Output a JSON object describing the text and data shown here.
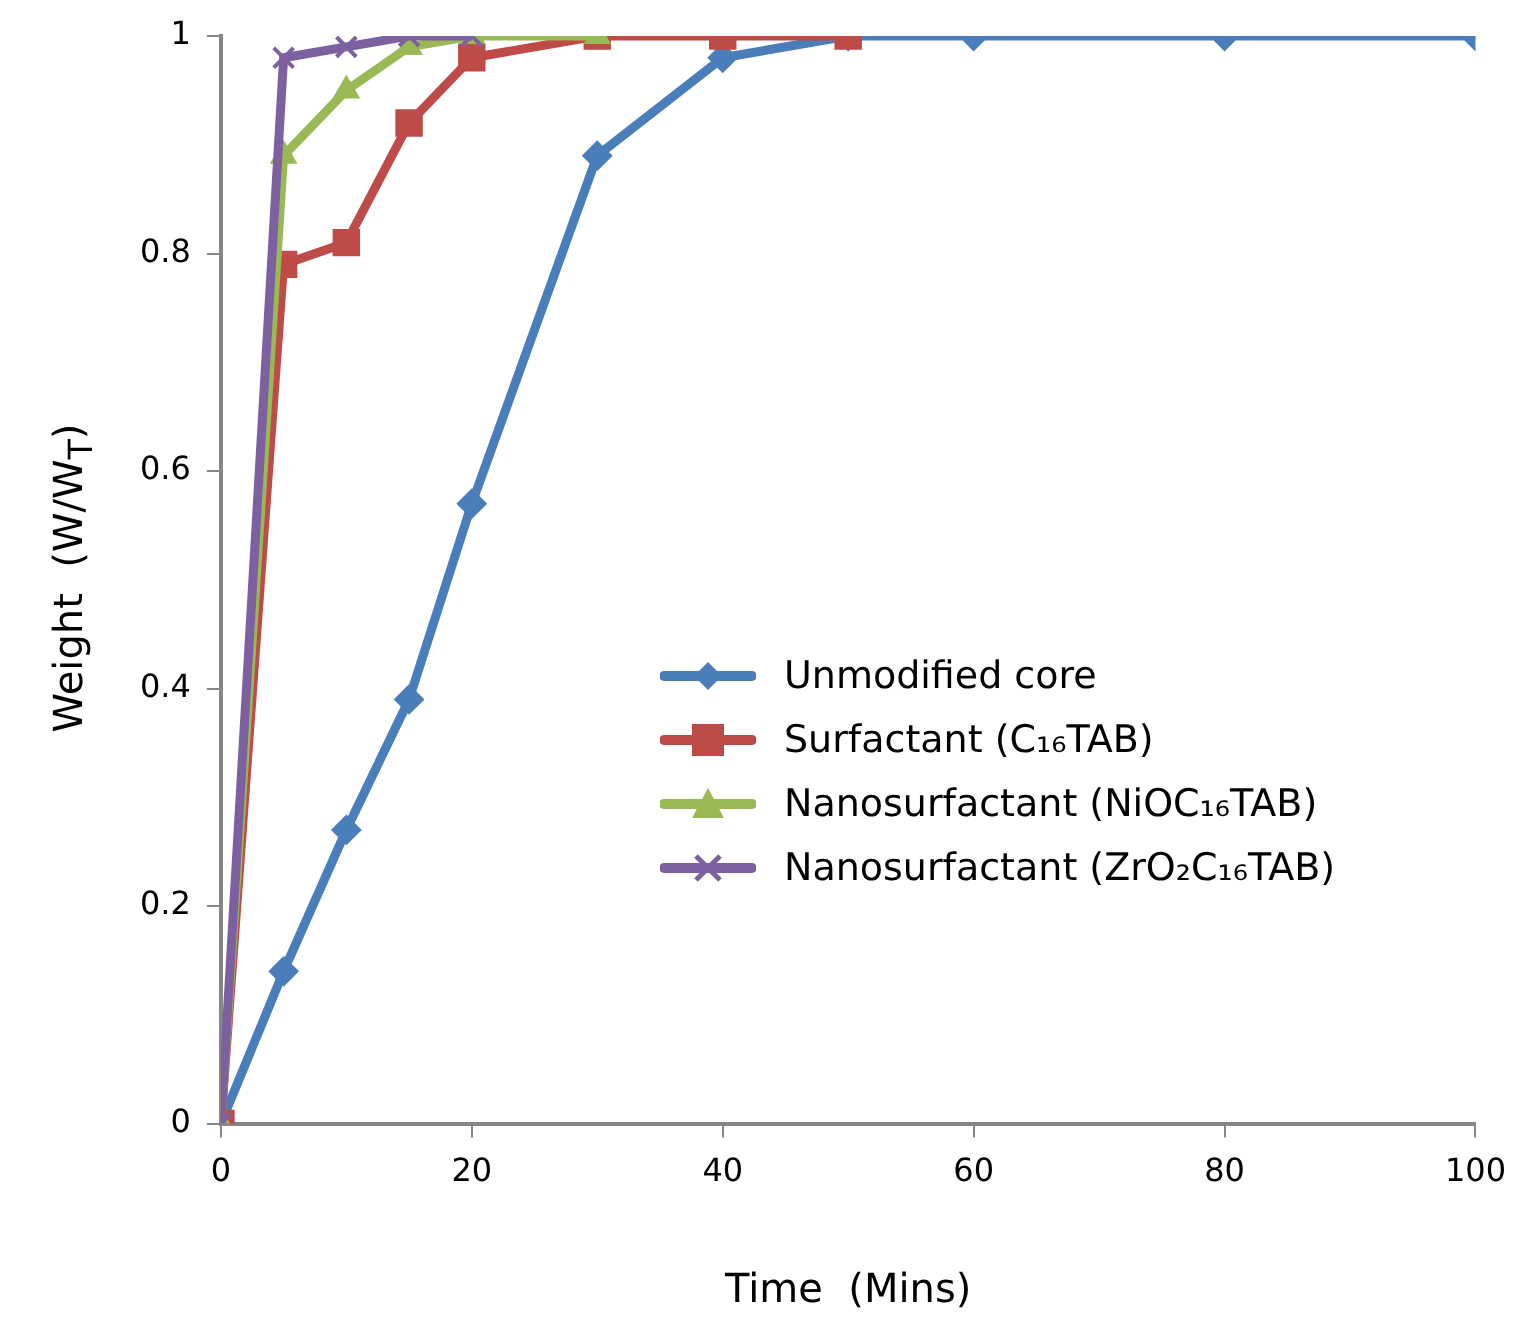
{
  "chart_data": {
    "type": "line",
    "xlabel": "Time  (Mins)",
    "ylabel": "Weight  (W/W$_{T}$)",
    "xlim": [
      0,
      100
    ],
    "xticks": [
      0,
      20,
      40,
      60,
      80,
      100
    ],
    "ylim": [
      0,
      1
    ],
    "yticks": [
      0,
      0.2,
      0.4,
      0.6,
      0.8,
      1
    ],
    "grid": false,
    "legend": "right",
    "line_style": "solid",
    "series": [
      {
        "name": "Unmodified core",
        "color": "#4a7ebb",
        "marker": "diamond",
        "x": [
          0,
          5,
          10,
          15,
          20,
          30,
          40,
          50,
          60,
          80,
          100
        ],
        "values": [
          0,
          0.14,
          0.27,
          0.39,
          0.57,
          0.89,
          0.98,
          1,
          1,
          1,
          1
        ]
      },
      {
        "name": "Surfactant (C₁₆TAB)",
        "color": "#be4b48",
        "marker": "square",
        "x": [
          0,
          5,
          10,
          15,
          20,
          30,
          40,
          50
        ],
        "values": [
          0,
          0.79,
          0.81,
          0.92,
          0.98,
          1,
          1,
          1
        ]
      },
      {
        "name": "Nanosurfactant (NiOC₁₆TAB)",
        "color": "#98b954",
        "marker": "triangle",
        "x": [
          0,
          5,
          10,
          15,
          20,
          30
        ],
        "values": [
          0,
          0.89,
          0.95,
          0.99,
          1,
          1
        ]
      },
      {
        "name": "Nanosurfactant (ZrO₂C₁₆TAB)",
        "color": "#7d60a0",
        "marker": "cross",
        "x": [
          0,
          5,
          10,
          15,
          20
        ],
        "values": [
          0,
          0.98,
          0.99,
          1,
          1
        ]
      }
    ]
  }
}
